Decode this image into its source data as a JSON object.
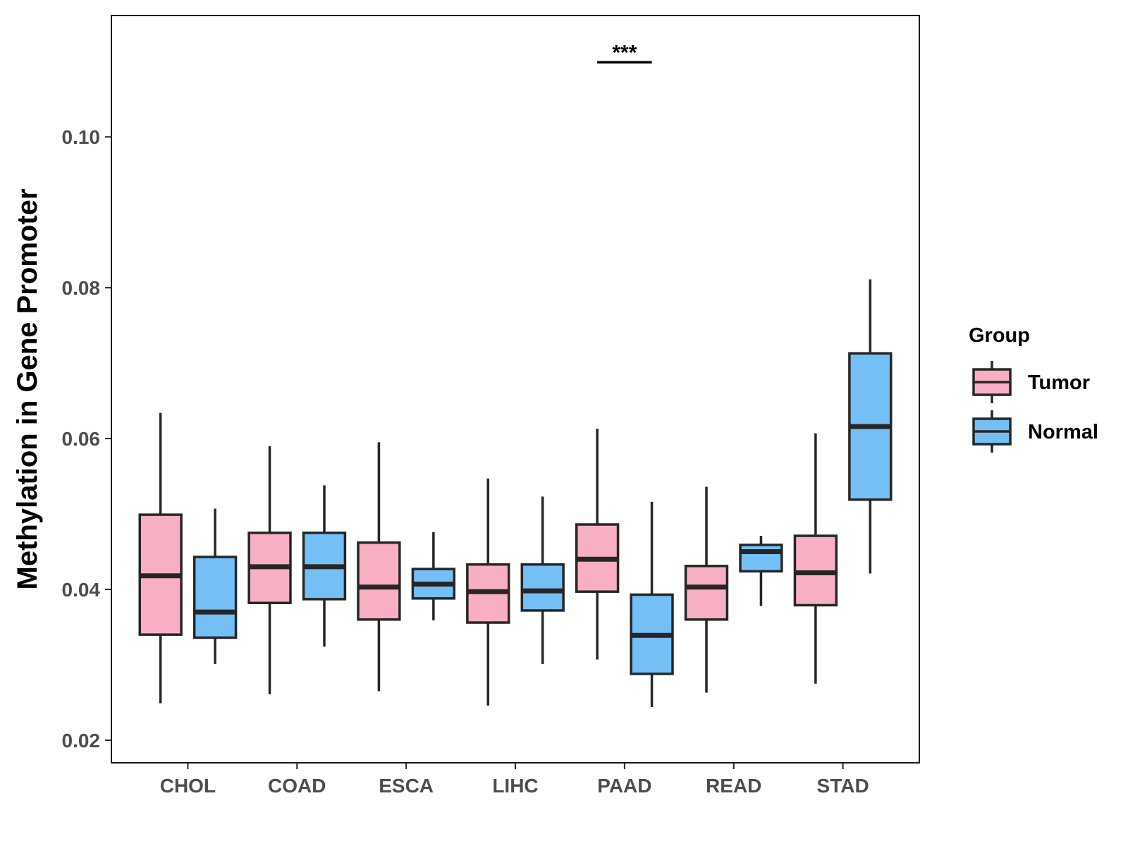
{
  "chart_data": {
    "type": "boxplot",
    "title": "",
    "xlabel": "",
    "ylabel": "Methylation in Gene Promoter",
    "ylim": [
      0.017,
      0.1161
    ],
    "yticks": [
      0.02,
      0.04,
      0.06,
      0.08,
      0.1
    ],
    "ytick_labels": [
      "0.02",
      "0.04",
      "0.06",
      "0.08",
      "0.10"
    ],
    "categories": [
      "CHOL",
      "COAD",
      "ESCA",
      "LIHC",
      "PAAD",
      "READ",
      "STAD"
    ],
    "legend": {
      "title": "Group",
      "position": "right",
      "entries": [
        {
          "name": "Tumor",
          "color": "#F9AFC3"
        },
        {
          "name": "Normal",
          "color": "#75BFF7"
        }
      ]
    },
    "series": [
      {
        "name": "Tumor",
        "color": "#F9AFC3",
        "boxes": [
          {
            "min": 0.0249,
            "q1": 0.034,
            "median": 0.0418,
            "q3": 0.0499,
            "max": 0.0634
          },
          {
            "min": 0.0261,
            "q1": 0.0382,
            "median": 0.043,
            "q3": 0.0475,
            "max": 0.059
          },
          {
            "min": 0.0265,
            "q1": 0.036,
            "median": 0.0403,
            "q3": 0.0462,
            "max": 0.0595
          },
          {
            "min": 0.0246,
            "q1": 0.0356,
            "median": 0.0397,
            "q3": 0.0433,
            "max": 0.0547
          },
          {
            "min": 0.0307,
            "q1": 0.0397,
            "median": 0.044,
            "q3": 0.0486,
            "max": 0.0613
          },
          {
            "min": 0.0263,
            "q1": 0.036,
            "median": 0.0403,
            "q3": 0.0431,
            "max": 0.0536
          },
          {
            "min": 0.0275,
            "q1": 0.0379,
            "median": 0.0422,
            "q3": 0.0471,
            "max": 0.0607
          }
        ]
      },
      {
        "name": "Normal",
        "color": "#75BFF7",
        "boxes": [
          {
            "min": 0.0301,
            "q1": 0.0336,
            "median": 0.037,
            "q3": 0.0443,
            "max": 0.0507
          },
          {
            "min": 0.0324,
            "q1": 0.0387,
            "median": 0.043,
            "q3": 0.0475,
            "max": 0.0538
          },
          {
            "min": 0.0359,
            "q1": 0.0388,
            "median": 0.0407,
            "q3": 0.0427,
            "max": 0.0476
          },
          {
            "min": 0.0301,
            "q1": 0.0372,
            "median": 0.0398,
            "q3": 0.0433,
            "max": 0.0523
          },
          {
            "min": 0.0244,
            "q1": 0.0288,
            "median": 0.0339,
            "q3": 0.0393,
            "max": 0.0516
          },
          {
            "min": 0.0378,
            "q1": 0.0424,
            "median": 0.045,
            "q3": 0.0459,
            "max": 0.0471
          },
          {
            "min": 0.0421,
            "q1": 0.0519,
            "median": 0.0616,
            "q3": 0.0713,
            "max": 0.0811
          }
        ]
      }
    ],
    "annotations": [
      {
        "category": "PAAD",
        "text": "***",
        "y": 0.1099
      }
    ]
  }
}
